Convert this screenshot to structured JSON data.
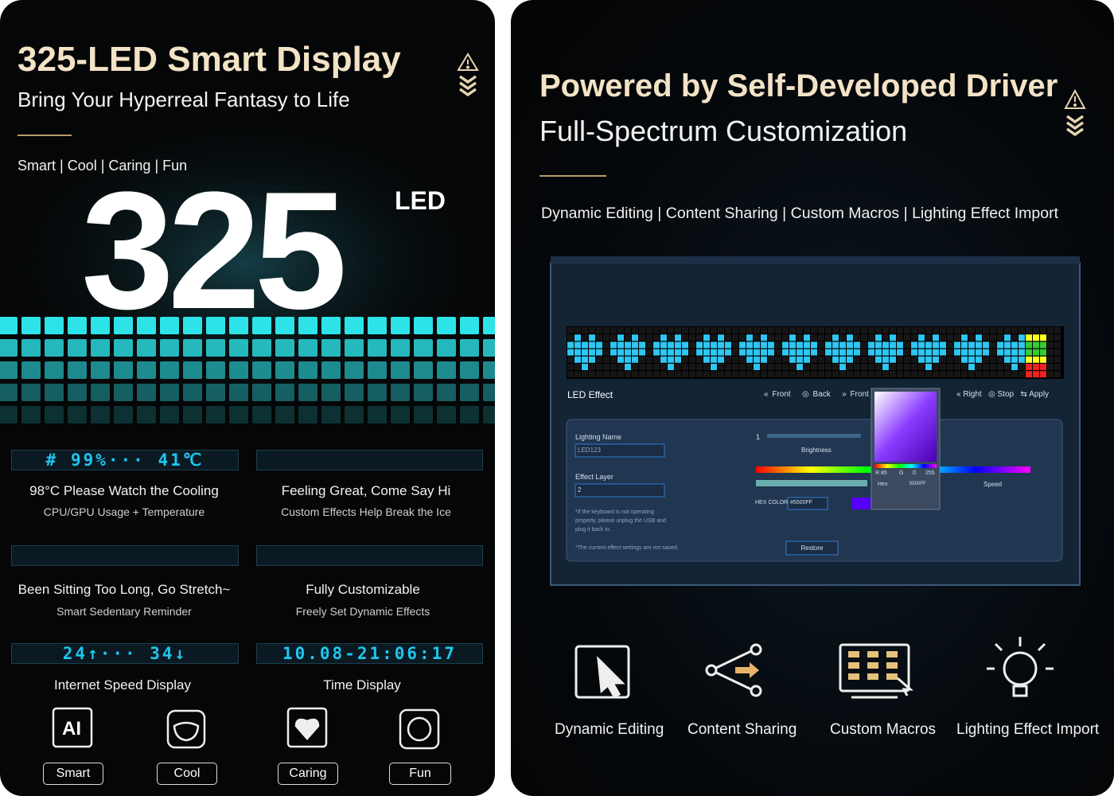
{
  "left_panel": {
    "title": "325-LED Smart Display",
    "subtitle": "Bring Your Hyperreal Fantasy to Life",
    "tags": [
      "Smart",
      "Cool",
      "Caring",
      "Fun"
    ],
    "big_number": "325",
    "big_unit": "LED",
    "features": [
      {
        "display": "# 99%··· 41℃",
        "title": "98°C Please Watch the Cooling",
        "caption": "CPU/GPU Usage + Temperature"
      },
      {
        "title": "Feeling Great, Come Say Hi",
        "caption": "Custom Effects Help Break the Ice"
      },
      {
        "title": "Been Sitting Too Long, Go Stretch~",
        "caption": "Smart Sedentary Reminder"
      },
      {
        "title": "Fully Customizable",
        "caption": "Freely Set Dynamic Effects"
      },
      {
        "display": "24↑··· 34↓",
        "title": "Internet Speed Display"
      },
      {
        "display": "10.08-21:06:17",
        "title": "Time Display"
      }
    ],
    "badges": [
      {
        "icon": "AI",
        "label": "Smart"
      },
      {
        "label": "Cool"
      },
      {
        "label": "Caring"
      },
      {
        "label": "Fun"
      }
    ]
  },
  "right_panel": {
    "title": "Powered by Self-Developed Driver",
    "subtitle": "Full-Spectrum Customization",
    "tags": [
      "Dynamic Editing",
      "Content Sharing",
      "Custom Macros",
      "Lighting Effect Import"
    ],
    "software": {
      "section": "LED Effect",
      "nav": [
        "Front",
        "Back",
        "Front",
        "Right",
        "Stop",
        "Apply"
      ],
      "lighting_name_label": "Lighting Name",
      "lighting_name": "LED123",
      "effect_layer_label": "Effect Layer",
      "effect_layer": "2",
      "brightness_value": "1",
      "brightness_label": "Brightness",
      "speed_label": "Speed",
      "hex_color_label": "HEX COLOR",
      "hex_color": "#5500FF",
      "note": "*If the keyboard is not operating properly, please unplug the USB and plug it back in.",
      "unsaved_note": "*The current effect settings are not saved.",
      "restore": "Restore",
      "picker": {
        "r": "R 85",
        "g": "G",
        "g_value": "0",
        "b_value": "255",
        "hex_label": "Hex",
        "hex": "5500FF"
      }
    },
    "features": [
      "Dynamic Editing",
      "Content Sharing",
      "Custom Macros",
      "Lighting Effect Import"
    ]
  }
}
